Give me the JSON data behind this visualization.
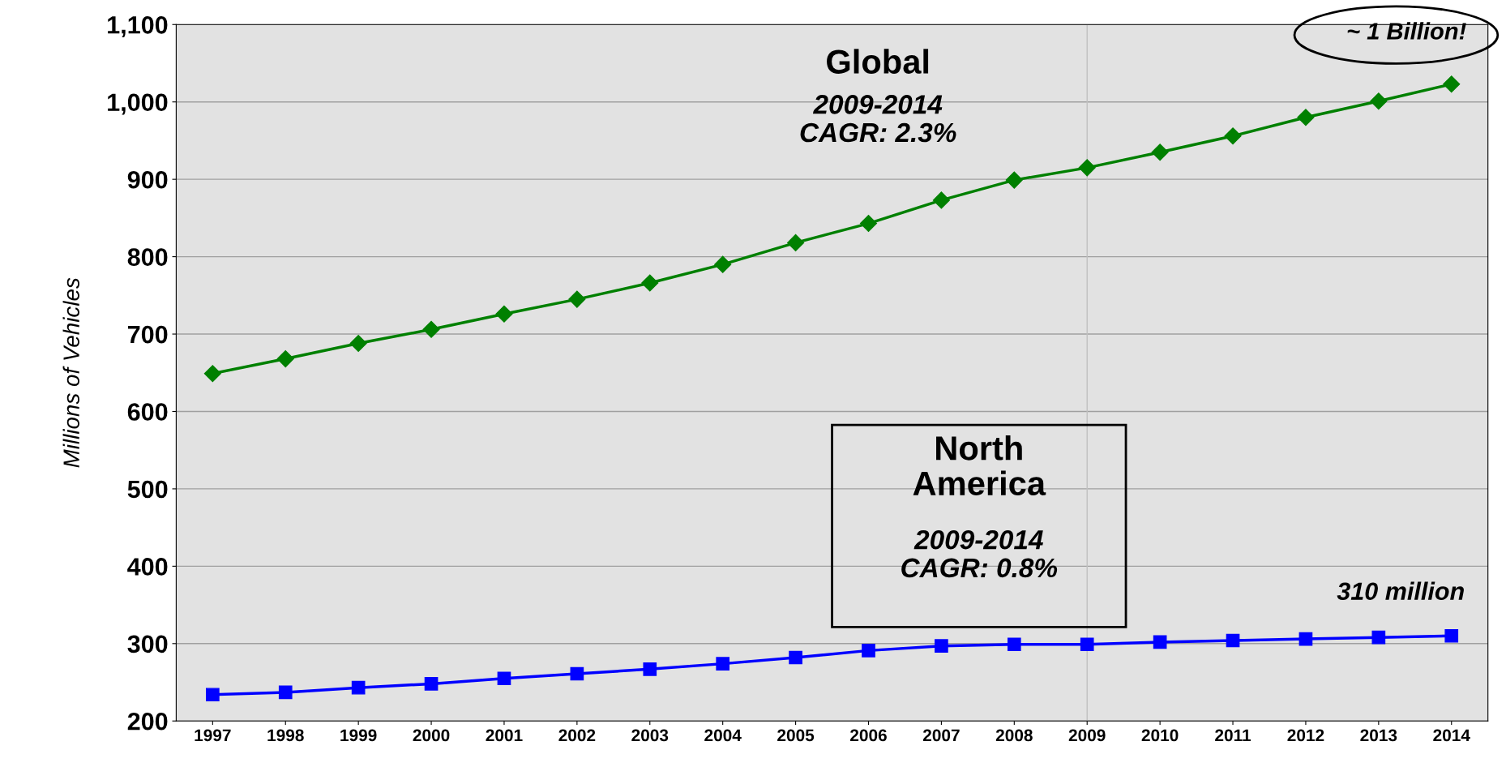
{
  "chart_data": {
    "type": "line",
    "ylabel": "Millions of Vehicles",
    "categories": [
      "1997",
      "1998",
      "1999",
      "2000",
      "2001",
      "2002",
      "2003",
      "2004",
      "2005",
      "2006",
      "2007",
      "2008",
      "2009",
      "2010",
      "2011",
      "2012",
      "2013",
      "2014"
    ],
    "series": [
      {
        "color": "#008000",
        "marker": "diamond",
        "values": [
          649,
          668,
          688,
          706,
          726,
          745,
          766,
          790,
          818,
          843,
          873,
          899,
          915,
          935,
          956,
          980,
          1001,
          1023
        ]
      },
      {
        "color": "#0000ff",
        "marker": "square",
        "values": [
          234,
          237,
          243,
          248,
          255,
          261,
          267,
          274,
          282,
          291,
          297,
          299,
          299,
          302,
          304,
          306,
          308,
          310
        ]
      }
    ],
    "ylim": [
      200,
      1100
    ],
    "yticks": [
      200,
      {
        "value": 300,
        "label": "300"
      },
      400,
      500,
      600,
      700,
      800,
      900,
      {
        "value": 1000,
        "label": "1,000"
      },
      {
        "value": 1100,
        "label": "1,100"
      }
    ],
    "grid": "y",
    "legend": false,
    "ref_lines": [
      {
        "axis": "x",
        "value": "2009",
        "color": "#c0c0c0"
      }
    ],
    "annotations": [
      "Global",
      "2009-2014\nCAGR: 2.3%",
      "North\nAmerica",
      "2009-2014\nCAGR: 0.8%",
      {
        "text": "~ 1 Billion!",
        "x": "2014",
        "y": 1023
      },
      {
        "text": "310 million",
        "x": "2014",
        "y": 310
      }
    ]
  }
}
